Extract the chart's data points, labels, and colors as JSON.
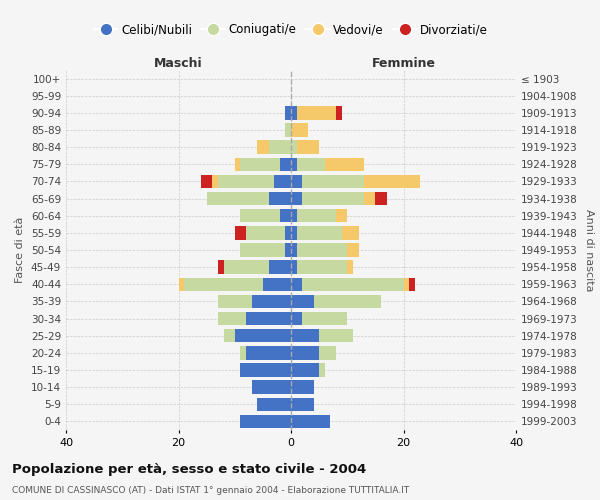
{
  "age_groups": [
    "0-4",
    "5-9",
    "10-14",
    "15-19",
    "20-24",
    "25-29",
    "30-34",
    "35-39",
    "40-44",
    "45-49",
    "50-54",
    "55-59",
    "60-64",
    "65-69",
    "70-74",
    "75-79",
    "80-84",
    "85-89",
    "90-94",
    "95-99",
    "100+"
  ],
  "birth_years": [
    "1999-2003",
    "1994-1998",
    "1989-1993",
    "1984-1988",
    "1979-1983",
    "1974-1978",
    "1969-1973",
    "1964-1968",
    "1959-1963",
    "1954-1958",
    "1949-1953",
    "1944-1948",
    "1939-1943",
    "1934-1938",
    "1929-1933",
    "1924-1928",
    "1919-1923",
    "1914-1918",
    "1909-1913",
    "1904-1908",
    "≤ 1903"
  ],
  "maschi": {
    "celibi": [
      9,
      6,
      7,
      9,
      8,
      10,
      8,
      7,
      5,
      4,
      1,
      1,
      2,
      4,
      3,
      2,
      0,
      0,
      1,
      0,
      0
    ],
    "coniugati": [
      0,
      0,
      0,
      0,
      1,
      2,
      5,
      6,
      14,
      8,
      8,
      7,
      7,
      11,
      10,
      7,
      4,
      1,
      0,
      0,
      0
    ],
    "vedovi": [
      0,
      0,
      0,
      0,
      0,
      0,
      0,
      0,
      1,
      0,
      0,
      0,
      0,
      0,
      1,
      1,
      2,
      0,
      0,
      0,
      0
    ],
    "divorziati": [
      0,
      0,
      0,
      0,
      0,
      0,
      0,
      0,
      0,
      1,
      0,
      2,
      0,
      0,
      2,
      0,
      0,
      0,
      0,
      0,
      0
    ]
  },
  "femmine": {
    "nubili": [
      7,
      4,
      4,
      5,
      5,
      5,
      2,
      4,
      2,
      1,
      1,
      1,
      1,
      2,
      2,
      1,
      0,
      0,
      1,
      0,
      0
    ],
    "coniugate": [
      0,
      0,
      0,
      1,
      3,
      6,
      8,
      12,
      18,
      9,
      9,
      8,
      7,
      11,
      11,
      5,
      1,
      0,
      0,
      0,
      0
    ],
    "vedove": [
      0,
      0,
      0,
      0,
      0,
      0,
      0,
      0,
      1,
      1,
      2,
      3,
      2,
      2,
      10,
      7,
      4,
      3,
      7,
      0,
      0
    ],
    "divorziate": [
      0,
      0,
      0,
      0,
      0,
      0,
      0,
      0,
      1,
      0,
      0,
      0,
      0,
      2,
      0,
      0,
      0,
      0,
      1,
      0,
      0
    ]
  },
  "colors": {
    "celibi_nubili": "#4472c4",
    "coniugati": "#c5d9a0",
    "vedovi": "#f5c96a",
    "divorziati": "#cc2222"
  },
  "title": "Popolazione per età, sesso e stato civile - 2004",
  "subtitle": "COMUNE DI CASSINASCO (AT) - Dati ISTAT 1° gennaio 2004 - Elaborazione TUTTITALIA.IT",
  "xlabel_left": "Maschi",
  "xlabel_right": "Femmine",
  "ylabel_left": "Fasce di età",
  "ylabel_right": "Anni di nascita",
  "xlim": 40,
  "background_color": "#f5f5f5",
  "grid_color": "#cccccc"
}
